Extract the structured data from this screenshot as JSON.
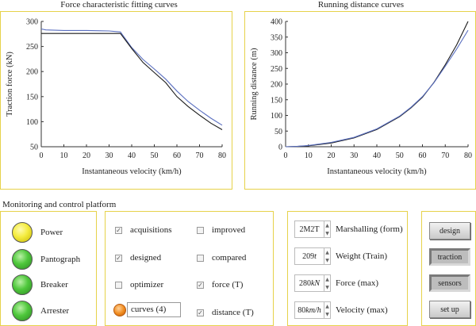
{
  "charts": {
    "force": {
      "title": "Force characteristic fitting curves"
    },
    "distance": {
      "title": "Running distance curves"
    }
  },
  "chart_data": [
    {
      "type": "line",
      "title": "Force characteristic fitting curves",
      "xlabel": "Instantaneous velocity (km/h)",
      "ylabel": "Traction force (kN)",
      "xlim": [
        0,
        80
      ],
      "ylim": [
        50,
        300
      ],
      "x_ticks": [
        "0",
        "10",
        "20",
        "30",
        "40",
        "50",
        "60",
        "70",
        "80"
      ],
      "y_ticks": [
        "50",
        "100",
        "150",
        "200",
        "250",
        "300"
      ],
      "series": [
        {
          "color": "#5a6fc0",
          "x": [
            0,
            2,
            10,
            20,
            30,
            35,
            40,
            45,
            50,
            55,
            60,
            65,
            70,
            75,
            80
          ],
          "y": [
            285,
            283,
            282,
            282,
            281,
            279,
            248,
            224,
            205,
            185,
            161,
            140,
            123,
            107,
            93
          ]
        },
        {
          "color": "#1a1a1a",
          "x": [
            0,
            10,
            20,
            30,
            35,
            40,
            45,
            50,
            55,
            60,
            65,
            70,
            75,
            80
          ],
          "y": [
            276,
            276,
            276,
            276,
            276,
            246,
            218,
            198,
            178,
            150,
            130,
            113,
            97,
            84
          ]
        }
      ]
    },
    {
      "type": "line",
      "title": "Running distance curves",
      "xlabel": "Instantaneous velocity (km/h)",
      "ylabel": "Running distance (m)",
      "xlim": [
        0,
        80
      ],
      "ylim": [
        0,
        400
      ],
      "x_ticks": [
        "0",
        "10",
        "20",
        "30",
        "40",
        "50",
        "60",
        "70",
        "80"
      ],
      "y_ticks": [
        "0",
        "50",
        "100",
        "150",
        "200",
        "250",
        "300",
        "350",
        "400"
      ],
      "series": [
        {
          "color": "#1a1a1a",
          "x": [
            0,
            5,
            10,
            20,
            30,
            40,
            50,
            55,
            60,
            65,
            70,
            75,
            80
          ],
          "y": [
            0,
            1,
            3,
            12,
            28,
            55,
            96,
            124,
            158,
            205,
            262,
            325,
            400
          ]
        },
        {
          "color": "#5a6fc0",
          "x": [
            0,
            5,
            10,
            20,
            30,
            40,
            50,
            55,
            60,
            65,
            70,
            75,
            80
          ],
          "y": [
            0,
            1,
            4,
            14,
            30,
            57,
            98,
            126,
            160,
            204,
            257,
            312,
            372
          ]
        }
      ]
    }
  ],
  "platform": {
    "title": "Monitoring and control platform",
    "indicators": [
      {
        "label": "Power",
        "color": "yellow"
      },
      {
        "label": "Pantograph",
        "color": "green"
      },
      {
        "label": "Breaker",
        "color": "green"
      },
      {
        "label": "Arrester",
        "color": "green"
      }
    ],
    "checkboxes_left": [
      {
        "label": "acquisitions",
        "checked": true
      },
      {
        "label": "designed",
        "checked": true
      },
      {
        "label": "optimizer",
        "checked": false
      }
    ],
    "checkboxes_right": [
      {
        "label": "improved",
        "checked": false
      },
      {
        "label": "compared",
        "checked": false
      },
      {
        "label": "force (T)",
        "checked": true
      },
      {
        "label": "distance (T)",
        "checked": true
      }
    ],
    "curves_field": "curves (4)",
    "params": [
      {
        "value": "2M2T",
        "unit": "",
        "label": "Marshalling (form)"
      },
      {
        "value": "209",
        "unit": "t",
        "label": "Weight (Train)"
      },
      {
        "value": "280",
        "unit": "kN",
        "label": "Force (max)"
      },
      {
        "value": "80",
        "unit": "km/h",
        "label": "Velocity (max)"
      }
    ],
    "buttons": [
      {
        "label": "design",
        "state": "raised"
      },
      {
        "label": "traction",
        "state": "pressed"
      },
      {
        "label": "sensors",
        "state": "pressed"
      },
      {
        "label": "set up",
        "state": "raised"
      }
    ]
  }
}
